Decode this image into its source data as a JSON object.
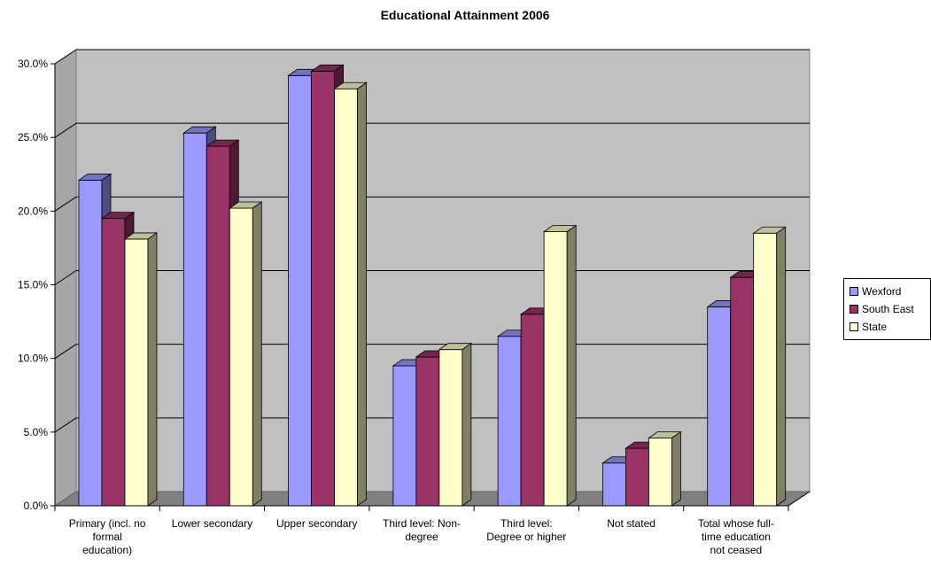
{
  "chart_data": {
    "type": "bar",
    "title": "Educational Attainment 2006",
    "xlabel": "",
    "ylabel": "",
    "ylim": [
      0,
      30
    ],
    "y_ticks": [
      "0.0%",
      "5.0%",
      "10.0%",
      "15.0%",
      "20.0%",
      "25.0%",
      "30.0%"
    ],
    "grid": true,
    "legend_position": "right",
    "categories": [
      [
        "Primary (incl. no",
        "formal",
        "education)"
      ],
      [
        "Lower secondary"
      ],
      [
        "Upper secondary"
      ],
      [
        "Third level: Non-",
        "degree"
      ],
      [
        "Third level:",
        "Degree or higher"
      ],
      [
        "Not stated"
      ],
      [
        "Total whose full-",
        "time education",
        "not ceased"
      ]
    ],
    "series": [
      {
        "name": "Wexford",
        "color": "#9999ff",
        "values": [
          22.1,
          25.3,
          29.2,
          9.5,
          11.5,
          2.9,
          13.5
        ]
      },
      {
        "name": "South East",
        "color": "#993366",
        "values": [
          19.5,
          24.4,
          29.5,
          10.1,
          13.0,
          3.9,
          15.5
        ]
      },
      {
        "name": "State",
        "color": "#ffffcc",
        "values": [
          18.1,
          20.2,
          28.3,
          10.6,
          18.6,
          4.6,
          18.5
        ]
      }
    ]
  }
}
